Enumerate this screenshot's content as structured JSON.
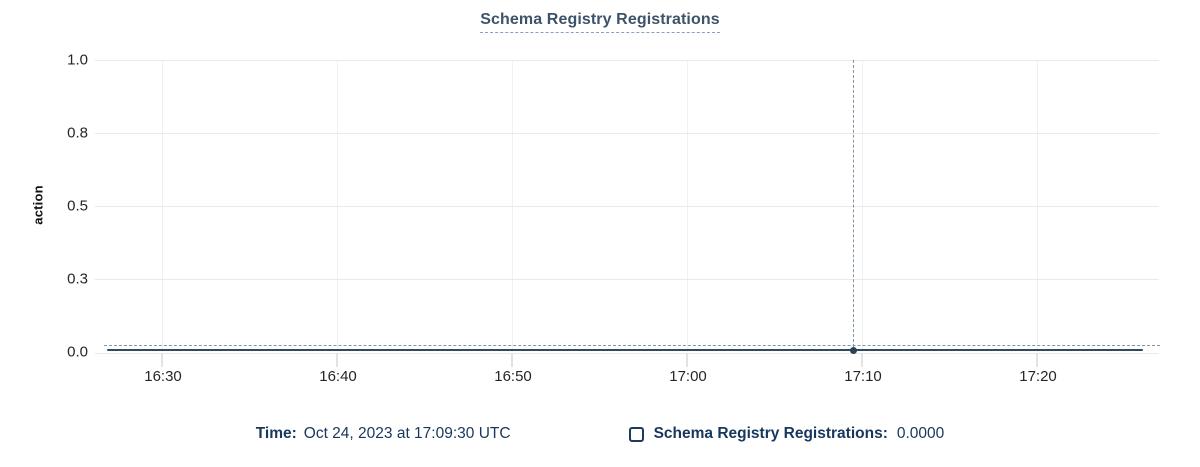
{
  "title": "Schema Registry Registrations",
  "colors": {
    "title_text": "#3d5369",
    "title_underline": "#8aa0b8",
    "series_line": "#35495e",
    "series_dot": "#2c4257",
    "crosshair": "#7e95ab",
    "grid_horizontal": "#e9e9e9",
    "grid_vertical": "#f0f0f0",
    "axis_text": "#262626",
    "legend_text": "#17375d",
    "background": "#ffffff"
  },
  "chart_data": {
    "type": "line",
    "title": "Schema Registry Registrations",
    "xlabel": "",
    "ylabel": "action",
    "ylim": [
      0.0,
      1.0
    ],
    "grid": true,
    "legend_position": "bottom",
    "x_tick_labels": [
      "16:30",
      "16:40",
      "16:50",
      "17:00",
      "17:10",
      "17:20"
    ],
    "y_ticks": [
      {
        "label": "1.0",
        "value": 1.0
      },
      {
        "label": "0.8",
        "value": 0.75
      },
      {
        "label": "0.5",
        "value": 0.5
      },
      {
        "label": "0.3",
        "value": 0.25
      },
      {
        "label": "0.0",
        "value": 0.0
      }
    ],
    "series": [
      {
        "name": "Schema Registry Registrations",
        "description": "flat line at 0 across the entire visible window (approx 16:26 to 17:26)",
        "constant_value": 0.0,
        "highlighted_point": {
          "time": "17:09:30",
          "value": 0.0
        }
      }
    ],
    "crosshair": {
      "time": "17:09:30",
      "value": 0.0
    }
  },
  "tooltip": {
    "time_label": "Time:",
    "time_value": "Oct 24, 2023 at 17:09:30 UTC",
    "series_label": "Schema Registry Registrations:",
    "series_value": "0.0000"
  }
}
